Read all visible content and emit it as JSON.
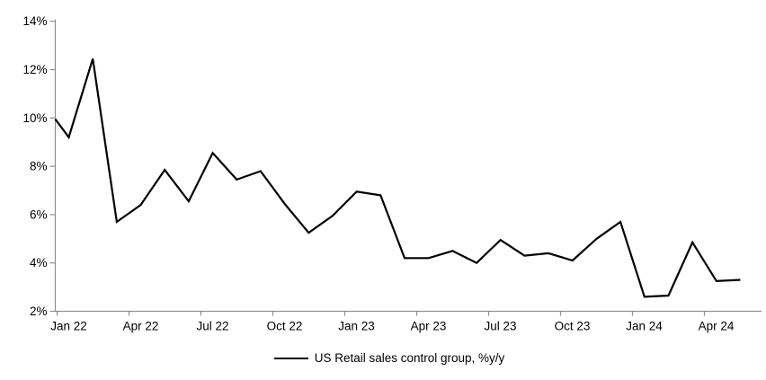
{
  "chart_data": {
    "type": "line",
    "title": "",
    "categories": [
      "Jan 22",
      "Feb 22",
      "Mar 22",
      "Apr 22",
      "May 22",
      "Jun 22",
      "Jul 22",
      "Aug 22",
      "Sep 22",
      "Oct 22",
      "Nov 22",
      "Dec 22",
      "Jan 23",
      "Feb 23",
      "Mar 23",
      "Apr 23",
      "May 23",
      "Jun 23",
      "Jul 23",
      "Aug 23",
      "Sep 23",
      "Oct 23",
      "Nov 23",
      "Dec 23",
      "Jan 24",
      "Feb 24",
      "Mar 24",
      "Apr 24",
      "May 24"
    ],
    "series": [
      {
        "name": "US Retail sales control group, %y/y",
        "color": "#000000",
        "values": [
          9.2,
          12.45,
          5.7,
          6.4,
          7.85,
          6.55,
          8.55,
          7.45,
          7.8,
          6.45,
          5.25,
          5.95,
          6.95,
          6.8,
          4.2,
          4.2,
          4.5,
          4.0,
          4.95,
          4.3,
          4.4,
          4.1,
          5.0,
          5.7,
          2.6,
          2.65,
          4.85,
          3.25,
          3.3
        ]
      }
    ],
    "axis_edge_start_value": 9.95,
    "x_tick_labels": [
      "Jan 22",
      "Apr 22",
      "Jul 22",
      "Oct 22",
      "Jan 23",
      "Apr 23",
      "Jul 23",
      "Oct 23",
      "Jan 24",
      "Apr 24"
    ],
    "y_tick_labels": [
      "2%",
      "4%",
      "6%",
      "8%",
      "10%",
      "12%",
      "14%"
    ],
    "ylim": [
      2,
      14
    ],
    "y_tick_step": 2,
    "grid": "off",
    "legend_position": "bottom-center",
    "axis_color": "#8f8f8f",
    "text_color": "#000000",
    "background": "#ffffff"
  },
  "legend": {
    "label": "US Retail sales control group, %y/y"
  }
}
